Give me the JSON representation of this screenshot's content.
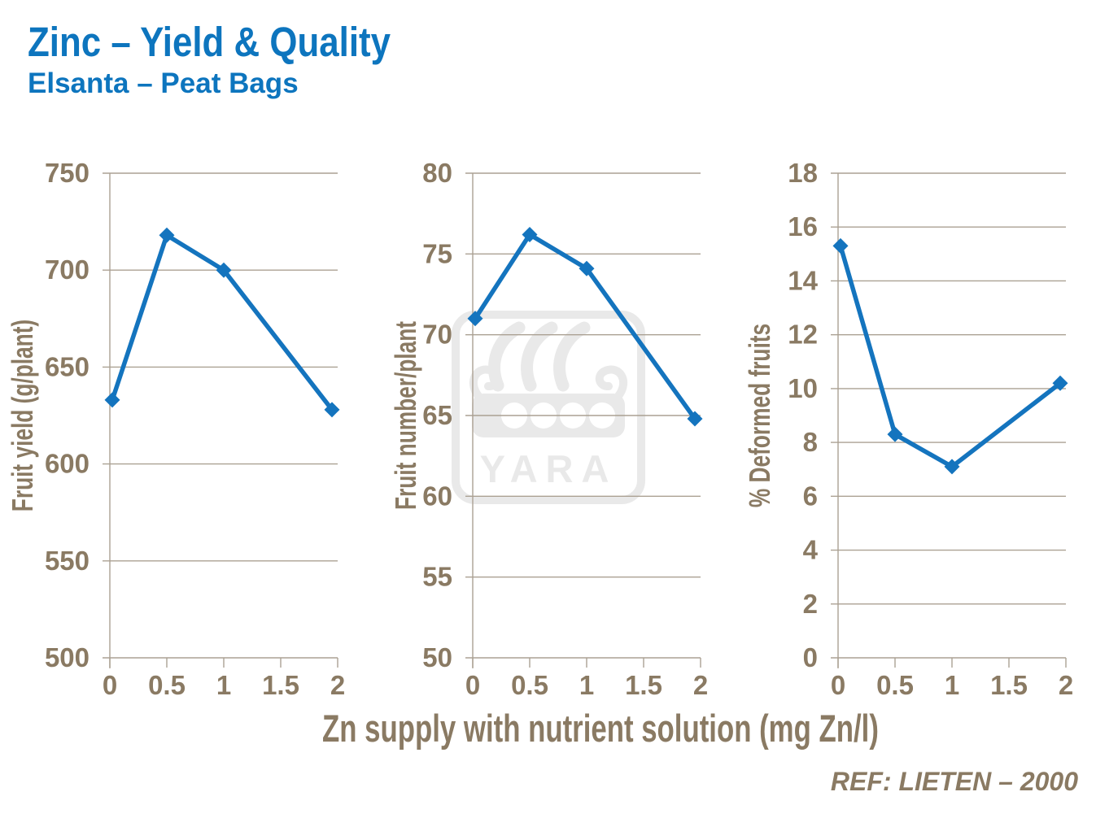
{
  "header": {
    "title": "Zinc – Yield & Quality",
    "subtitle": "Elsanta – Peat Bags"
  },
  "footer": {
    "reference": "REF:  LIETEN – 2000"
  },
  "watermark": {
    "text": "YARA",
    "icon": "viking-ship-logo"
  },
  "colors": {
    "title_blue": "#0d75be",
    "line_blue": "#1474be",
    "axis_text_brown": "#8a7a63",
    "gridline_brown": "#aba193",
    "watermark_gray": "#e9e9e9"
  },
  "x_axis": {
    "label": "Zn supply with nutrient solution (mg Zn/l)",
    "ticks": [
      "0",
      "0.5",
      "1",
      "1.5",
      "2"
    ],
    "lim": [
      0,
      2
    ]
  },
  "chart_data": [
    {
      "type": "line",
      "title": "",
      "ylabel": "Fruit yield (g/plant)",
      "xlabel": "Zn supply with nutrient solution (mg Zn/l)",
      "x": [
        0,
        0.5,
        1,
        2
      ],
      "y": [
        633,
        718,
        700,
        628
      ],
      "ylim": [
        500,
        750
      ],
      "ytick_step": 50,
      "grid": "horizontal",
      "legend": "none",
      "marker": "diamond"
    },
    {
      "type": "line",
      "title": "",
      "ylabel": "Fruit number/plant",
      "xlabel": "Zn supply with nutrient solution (mg Zn/l)",
      "x": [
        0,
        0.5,
        1,
        2
      ],
      "y": [
        71,
        76.2,
        74.1,
        64.8
      ],
      "ylim": [
        50,
        80
      ],
      "ytick_step": 5,
      "grid": "horizontal",
      "legend": "none",
      "marker": "diamond"
    },
    {
      "type": "line",
      "title": "",
      "ylabel": "% Deformed fruits",
      "xlabel": "Zn supply with nutrient solution (mg Zn/l)",
      "x": [
        0,
        0.5,
        1,
        2
      ],
      "y": [
        15.3,
        8.3,
        7.1,
        10.2
      ],
      "ylim": [
        0,
        18
      ],
      "ytick_step": 2,
      "grid": "horizontal",
      "legend": "none",
      "marker": "diamond"
    }
  ]
}
